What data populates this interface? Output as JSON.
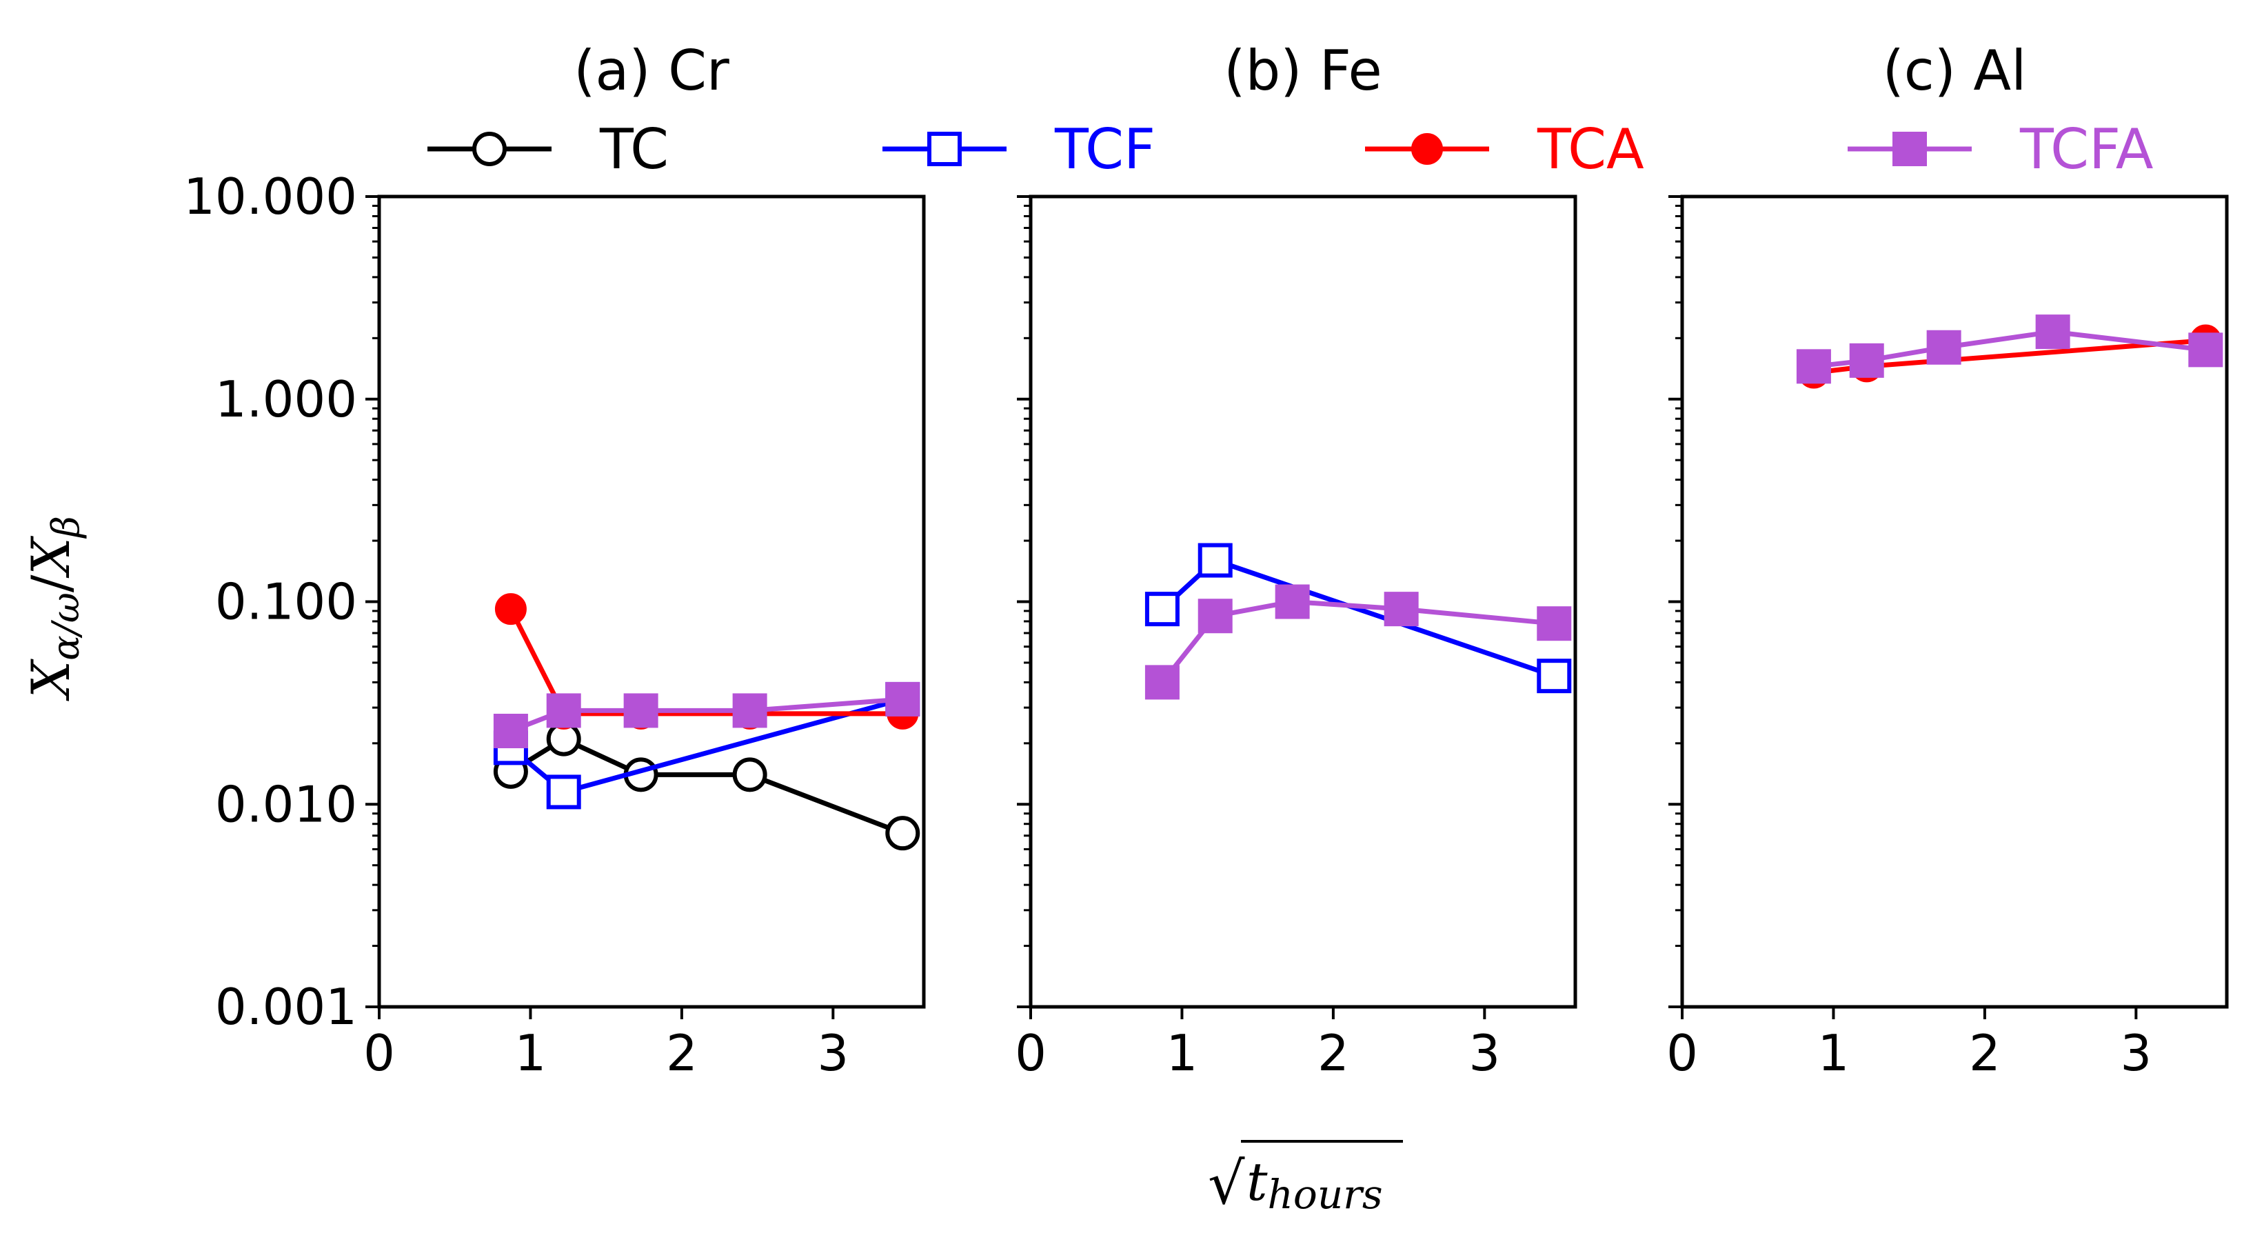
{
  "chart_data": {
    "type": "line",
    "yscale": "log",
    "ylabel": "X_{α/ω}/X_β",
    "ylabel_parts": {
      "main": "X",
      "sub1": "α/ω",
      "slash": "/",
      "main2": "X",
      "sub2": "β"
    },
    "xlabel": "√t_hours",
    "xlabel_parts": {
      "root": "√",
      "t": "t",
      "sub": "hours"
    },
    "xlim": [
      0,
      3.6
    ],
    "ylim": [
      0.001,
      10
    ],
    "x_ticks": [
      0,
      1,
      2,
      3
    ],
    "x_tick_labels": [
      "0",
      "1",
      "2",
      "3"
    ],
    "y_ticks": [
      0.001,
      0.01,
      0.1,
      1,
      10
    ],
    "y_tick_labels": [
      "0.001",
      "0.010",
      "0.100",
      "1.000",
      "10.000"
    ],
    "legend": [
      {
        "name": "TC",
        "color": "#000000",
        "marker": "circle-open"
      },
      {
        "name": "TCF",
        "color": "#0000ff",
        "marker": "square-open"
      },
      {
        "name": "TCA",
        "color": "#ff0000",
        "marker": "circle-filled"
      },
      {
        "name": "TCFA",
        "color": "#b452d6",
        "marker": "square-filled"
      }
    ],
    "panels": [
      {
        "title": "(a) Cr",
        "series": [
          {
            "name": "TC",
            "x": [
              0.87,
              1.22,
              1.73,
              2.45,
              3.46
            ],
            "y": [
              0.0145,
              0.021,
              0.014,
              0.014,
              0.0072
            ]
          },
          {
            "name": "TCF",
            "x": [
              0.87,
              1.22,
              3.46
            ],
            "y": [
              0.019,
              0.0115,
              0.033
            ]
          },
          {
            "name": "TCA",
            "x": [
              0.87,
              1.22,
              1.73,
              2.45,
              3.46
            ],
            "y": [
              0.092,
              0.028,
              0.028,
              0.028,
              0.028
            ]
          },
          {
            "name": "TCFA",
            "x": [
              0.87,
              1.22,
              1.73,
              2.45,
              3.46
            ],
            "y": [
              0.023,
              0.029,
              0.029,
              0.029,
              0.033
            ]
          }
        ]
      },
      {
        "title": "(b) Fe",
        "series": [
          {
            "name": "TCF",
            "x": [
              0.87,
              1.22,
              3.46
            ],
            "y": [
              0.092,
              0.16,
              0.043
            ]
          },
          {
            "name": "TCFA",
            "x": [
              0.87,
              1.22,
              1.73,
              2.45,
              3.46
            ],
            "y": [
              0.04,
              0.085,
              0.1,
              0.092,
              0.078
            ]
          }
        ]
      },
      {
        "title": "(c) Al",
        "series": [
          {
            "name": "TCA",
            "x": [
              0.87,
              1.22,
              3.46
            ],
            "y": [
              1.35,
              1.45,
              1.95
            ]
          },
          {
            "name": "TCFA",
            "x": [
              0.87,
              1.22,
              1.73,
              2.45,
              3.46
            ],
            "y": [
              1.45,
              1.55,
              1.8,
              2.15,
              1.75
            ]
          }
        ]
      }
    ]
  }
}
